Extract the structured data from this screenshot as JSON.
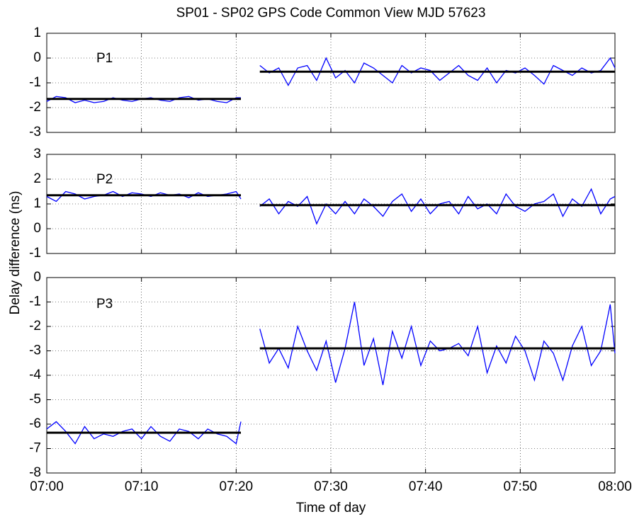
{
  "chart_data": [
    {
      "type": "line",
      "title": "SP01 - SP02 GPS Code Common View MJD 57623",
      "annotation": "P1",
      "x": [
        0,
        1,
        2,
        3,
        4,
        5,
        6,
        7,
        8,
        9,
        10,
        11,
        12,
        13,
        14,
        15,
        16,
        17,
        18,
        19,
        20,
        20.5,
        21.5,
        22.5,
        23.5,
        24.5,
        25.5,
        26.5,
        27.5,
        28.5,
        29.5,
        30.5,
        31.5,
        32.5,
        33.5,
        34.5,
        35.5,
        36.5,
        37.5,
        38.5,
        39.5,
        40.5,
        41.5,
        42.5,
        43.5,
        44.5,
        45.5,
        46.5,
        47.5,
        48.5,
        49.5,
        50.5,
        51.5,
        52.5,
        53.5,
        54.5,
        55.5,
        56.5,
        57.5,
        58.5,
        59.5,
        60
      ],
      "xlim": [
        0,
        60
      ],
      "xticks": [
        0,
        10,
        20,
        30,
        40,
        50,
        60
      ],
      "ylim": [
        -3,
        1
      ],
      "yticks": [
        -3,
        -2,
        -1,
        0,
        1
      ],
      "grid": true,
      "series": [
        {
          "color": "#0000ff",
          "values": [
            -1.75,
            -1.55,
            -1.6,
            -1.8,
            -1.7,
            -1.8,
            -1.75,
            -1.6,
            -1.7,
            -1.75,
            -1.65,
            -1.6,
            -1.7,
            -1.75,
            -1.6,
            -1.55,
            -1.7,
            -1.65,
            -1.75,
            -1.8,
            -1.6,
            -1.6,
            null,
            -0.3,
            -0.6,
            -0.4,
            -1.1,
            -0.4,
            -0.3,
            -0.9,
            0,
            -0.8,
            -0.5,
            -1,
            -0.2,
            -0.4,
            -0.7,
            -1,
            -0.3,
            -0.6,
            -0.4,
            -0.5,
            -0.9,
            -0.6,
            -0.3,
            -0.7,
            -0.9,
            -0.4,
            -1,
            -0.5,
            -0.6,
            -0.4,
            -0.7,
            -1.05,
            -0.3,
            -0.5,
            -0.7,
            -0.4,
            -0.6,
            -0.5,
            0,
            -0.4
          ]
        },
        {
          "color": "#000000",
          "x": [
            0,
            20.5,
            21.5,
            22.5,
            60
          ],
          "values": [
            -1.65,
            -1.65,
            null,
            -0.55,
            -0.55
          ]
        }
      ]
    },
    {
      "type": "line",
      "ylabel": "Delay difference (ns)",
      "annotation": "P2",
      "x": [
        0,
        1,
        2,
        3,
        4,
        5,
        6,
        7,
        8,
        9,
        10,
        11,
        12,
        13,
        14,
        15,
        16,
        17,
        18,
        19,
        20,
        20.5,
        21.5,
        22.5,
        23.5,
        24.5,
        25.5,
        26.5,
        27.5,
        28.5,
        29.5,
        30.5,
        31.5,
        32.5,
        33.5,
        34.5,
        35.5,
        36.5,
        37.5,
        38.5,
        39.5,
        40.5,
        41.5,
        42.5,
        43.5,
        44.5,
        45.5,
        46.5,
        47.5,
        48.5,
        49.5,
        50.5,
        51.5,
        52.5,
        53.5,
        54.5,
        55.5,
        56.5,
        57.5,
        58.5,
        59.5,
        60
      ],
      "xlim": [
        0,
        60
      ],
      "xticks": [
        0,
        10,
        20,
        30,
        40,
        50,
        60
      ],
      "ylim": [
        -1,
        3
      ],
      "yticks": [
        -1,
        0,
        1,
        2,
        3
      ],
      "grid": true,
      "series": [
        {
          "color": "#0000ff",
          "values": [
            1.3,
            1.1,
            1.5,
            1.4,
            1.2,
            1.3,
            1.35,
            1.5,
            1.3,
            1.45,
            1.4,
            1.3,
            1.45,
            1.35,
            1.4,
            1.25,
            1.45,
            1.3,
            1.35,
            1.4,
            1.5,
            1.2,
            null,
            0.9,
            1.2,
            0.6,
            1.1,
            0.9,
            1.3,
            0.2,
            1.0,
            0.6,
            1.1,
            0.6,
            1.2,
            0.9,
            0.5,
            1.1,
            1.4,
            0.7,
            1.2,
            0.6,
            1.0,
            1.1,
            0.6,
            1.3,
            0.8,
            1.0,
            0.6,
            1.4,
            0.9,
            0.7,
            1.0,
            1.1,
            1.4,
            0.5,
            1.2,
            0.9,
            1.6,
            0.6,
            1.2,
            1.3
          ]
        },
        {
          "color": "#000000",
          "x": [
            0,
            20.5,
            21.5,
            22.5,
            60
          ],
          "values": [
            1.35,
            1.35,
            null,
            0.95,
            0.95
          ]
        }
      ]
    },
    {
      "type": "line",
      "xlabel": "Time of day",
      "annotation": "P3",
      "x": [
        0,
        1,
        2,
        3,
        4,
        5,
        6,
        7,
        8,
        9,
        10,
        11,
        12,
        13,
        14,
        15,
        16,
        17,
        18,
        19,
        20,
        20.5,
        21.5,
        22.5,
        23.5,
        24.5,
        25.5,
        26.5,
        27.5,
        28.5,
        29.5,
        30.5,
        31.5,
        32.5,
        33.5,
        34.5,
        35.5,
        36.5,
        37.5,
        38.5,
        39.5,
        40.5,
        41.5,
        42.5,
        43.5,
        44.5,
        45.5,
        46.5,
        47.5,
        48.5,
        49.5,
        50.5,
        51.5,
        52.5,
        53.5,
        54.5,
        55.5,
        56.5,
        57.5,
        58.5,
        59.5,
        60
      ],
      "xlim": [
        0,
        60
      ],
      "xticks": [
        {
          "value": 0,
          "label": "07:00"
        },
        {
          "value": 10,
          "label": "07:10"
        },
        {
          "value": 20,
          "label": "07:20"
        },
        {
          "value": 30,
          "label": "07:30"
        },
        {
          "value": 40,
          "label": "07:40"
        },
        {
          "value": 50,
          "label": "07:50"
        },
        {
          "value": 60,
          "label": "08:00"
        }
      ],
      "ylim": [
        -8,
        0
      ],
      "yticks": [
        -8,
        -7,
        -6,
        -5,
        -4,
        -3,
        -2,
        -1,
        0
      ],
      "grid": true,
      "series": [
        {
          "color": "#0000ff",
          "values": [
            -6.2,
            -5.9,
            -6.3,
            -6.8,
            -6.1,
            -6.6,
            -6.4,
            -6.5,
            -6.3,
            -6.2,
            -6.6,
            -6.1,
            -6.5,
            -6.7,
            -6.2,
            -6.3,
            -6.6,
            -6.2,
            -6.4,
            -6.5,
            -6.8,
            -5.9,
            null,
            -2.1,
            -3.5,
            -2.9,
            -3.7,
            -2.0,
            -3.0,
            -3.8,
            -2.6,
            -4.3,
            -2.9,
            -1.0,
            -3.6,
            -2.5,
            -4.4,
            -2.2,
            -3.3,
            -2.0,
            -3.6,
            -2.6,
            -3.0,
            -2.9,
            -2.7,
            -3.2,
            -2.0,
            -3.9,
            -2.8,
            -3.5,
            -2.4,
            -3.0,
            -4.2,
            -2.6,
            -3.1,
            -4.2,
            -2.8,
            -2.0,
            -3.6,
            -3.0,
            -1.1,
            -3.1
          ]
        },
        {
          "color": "#000000",
          "x": [
            0,
            20.5,
            21.5,
            22.5,
            60
          ],
          "values": [
            -6.35,
            -6.35,
            null,
            -2.9,
            -2.9
          ]
        }
      ]
    }
  ]
}
